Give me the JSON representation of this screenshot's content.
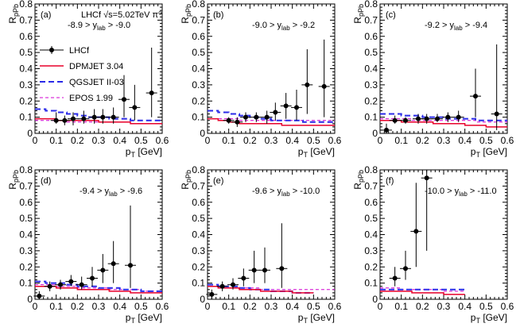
{
  "chart_data": {
    "type": "scatter",
    "title": "LHCf √s=5.02TeV π⁰",
    "title_parts": {
      "experiment": "LHCf",
      "energy": "√s=5.02TeV",
      "particle": "π⁰"
    },
    "xlabel": "p_T [GeV]",
    "ylabel": "R_pPb",
    "xlim": [
      0,
      0.6
    ],
    "ylim": [
      0,
      0.8
    ],
    "xticks": [
      "0",
      "0.1",
      "0.2",
      "0.3",
      "0.4",
      "0.5",
      "0.6"
    ],
    "yticks": [
      "0",
      "0.1",
      "0.2",
      "0.3",
      "0.4",
      "0.5",
      "0.6",
      "0.7",
      "0.8"
    ],
    "colors": {
      "lhcf": "#000000",
      "dpmjet": "#e8002a",
      "qgsjet": "#2a2ae8",
      "epos": "#d000d0"
    },
    "legend": {
      "position": "upper-left",
      "entries": [
        {
          "key": "lhcf",
          "label": "LHCf"
        },
        {
          "key": "dpmjet",
          "label": "DPMJET 3.04"
        },
        {
          "key": "qgsjet",
          "label": "QGSJET II-03"
        },
        {
          "key": "epos",
          "label": "EPOS 1.99"
        }
      ]
    },
    "panels": [
      {
        "label": "(a)",
        "rap_lo": "-8.9",
        "rap_hi": "-9.0",
        "lhcf": [
          {
            "x": 0.1,
            "y": 0.08,
            "ylo": 0.06,
            "yhi": 0.13
          },
          {
            "x": 0.14,
            "y": 0.08,
            "ylo": 0.05,
            "yhi": 0.11
          },
          {
            "x": 0.18,
            "y": 0.09,
            "ylo": 0.05,
            "yhi": 0.13
          },
          {
            "x": 0.23,
            "y": 0.09,
            "ylo": 0.06,
            "yhi": 0.14
          },
          {
            "x": 0.28,
            "y": 0.1,
            "ylo": 0.06,
            "yhi": 0.15
          },
          {
            "x": 0.32,
            "y": 0.1,
            "ylo": 0.06,
            "yhi": 0.15
          },
          {
            "x": 0.37,
            "y": 0.1,
            "ylo": 0.06,
            "yhi": 0.16
          },
          {
            "x": 0.42,
            "y": 0.21,
            "ylo": 0.1,
            "yhi": 0.36
          },
          {
            "x": 0.47,
            "y": 0.16,
            "ylo": 0.08,
            "yhi": 0.3
          },
          {
            "x": 0.55,
            "y": 0.25,
            "ylo": 0.1,
            "yhi": 0.53
          }
        ],
        "dpmjet": [
          0.09,
          0.09,
          0.08,
          0.08,
          0.08,
          0.08,
          0.07,
          0.07,
          0.07,
          0.06,
          0.06,
          0.06
        ],
        "qgsjet": [
          0.15,
          0.14,
          0.13,
          0.12,
          0.11,
          0.1,
          0.1,
          0.09,
          0.09,
          0.08,
          0.08,
          0.08
        ],
        "epos": [
          0.08,
          0.08,
          0.08,
          0.07,
          0.07,
          0.07,
          0.07,
          0.07,
          0.07,
          0.06,
          0.06,
          0.06
        ]
      },
      {
        "label": "(b)",
        "rap_lo": "-9.0",
        "rap_hi": "-9.2",
        "lhcf": [
          {
            "x": 0.1,
            "y": 0.08,
            "ylo": 0.06,
            "yhi": 0.1
          },
          {
            "x": 0.14,
            "y": 0.07,
            "ylo": 0.04,
            "yhi": 0.1
          },
          {
            "x": 0.18,
            "y": 0.1,
            "ylo": 0.07,
            "yhi": 0.13
          },
          {
            "x": 0.23,
            "y": 0.1,
            "ylo": 0.07,
            "yhi": 0.13
          },
          {
            "x": 0.28,
            "y": 0.1,
            "ylo": 0.06,
            "yhi": 0.14
          },
          {
            "x": 0.32,
            "y": 0.13,
            "ylo": 0.08,
            "yhi": 0.19
          },
          {
            "x": 0.37,
            "y": 0.17,
            "ylo": 0.09,
            "yhi": 0.25
          },
          {
            "x": 0.42,
            "y": 0.16,
            "ylo": 0.08,
            "yhi": 0.27
          },
          {
            "x": 0.47,
            "y": 0.3,
            "ylo": 0.12,
            "yhi": 0.52
          },
          {
            "x": 0.55,
            "y": 0.29,
            "ylo": 0.1,
            "yhi": 0.58
          }
        ],
        "dpmjet": [
          0.09,
          0.08,
          0.07,
          0.06,
          0.06,
          0.06,
          0.06,
          0.05,
          0.05,
          0.05,
          0.05,
          0.05
        ],
        "qgsjet": [
          0.14,
          0.13,
          0.12,
          0.11,
          0.1,
          0.09,
          0.08,
          0.08,
          0.08,
          0.07,
          0.07,
          0.07
        ],
        "epos": [
          0.09,
          0.09,
          0.09,
          0.08,
          0.08,
          0.08,
          0.08,
          0.08,
          0.08,
          0.08,
          0.08,
          0.08
        ]
      },
      {
        "label": "(c)",
        "rap_lo": "-9.2",
        "rap_hi": "-9.4",
        "lhcf": [
          {
            "x": 0.03,
            "y": 0.02,
            "ylo": 0.0,
            "yhi": 0.06
          },
          {
            "x": 0.07,
            "y": 0.08,
            "ylo": 0.06,
            "yhi": 0.11
          },
          {
            "x": 0.12,
            "y": 0.08,
            "ylo": 0.06,
            "yhi": 0.1
          },
          {
            "x": 0.18,
            "y": 0.09,
            "ylo": 0.06,
            "yhi": 0.12
          },
          {
            "x": 0.22,
            "y": 0.09,
            "ylo": 0.06,
            "yhi": 0.12
          },
          {
            "x": 0.27,
            "y": 0.09,
            "ylo": 0.07,
            "yhi": 0.12
          },
          {
            "x": 0.32,
            "y": 0.1,
            "ylo": 0.07,
            "yhi": 0.13
          },
          {
            "x": 0.37,
            "y": 0.1,
            "ylo": 0.07,
            "yhi": 0.14
          },
          {
            "x": 0.45,
            "y": 0.23,
            "ylo": 0.1,
            "yhi": 0.4
          },
          {
            "x": 0.55,
            "y": 0.12,
            "ylo": 0.02,
            "yhi": 0.55
          }
        ],
        "dpmjet": [
          0.08,
          0.08,
          0.07,
          0.07,
          0.07,
          0.06,
          0.06,
          0.06,
          0.05,
          0.05,
          0.04,
          0.04
        ],
        "qgsjet": [
          0.12,
          0.12,
          0.11,
          0.11,
          0.1,
          0.1,
          0.09,
          0.09,
          0.09,
          0.08,
          0.08,
          0.08
        ],
        "epos": [
          0.09,
          0.09,
          0.09,
          0.08,
          0.08,
          0.08,
          0.08,
          0.08,
          0.08,
          0.07,
          0.07,
          0.07
        ]
      },
      {
        "label": "(d)",
        "rap_lo": "-9.4",
        "rap_hi": "-9.6",
        "lhcf": [
          {
            "x": 0.02,
            "y": 0.02,
            "ylo": 0.0,
            "yhi": 0.05
          },
          {
            "x": 0.07,
            "y": 0.08,
            "ylo": 0.05,
            "yhi": 0.11
          },
          {
            "x": 0.12,
            "y": 0.09,
            "ylo": 0.06,
            "yhi": 0.12
          },
          {
            "x": 0.17,
            "y": 0.11,
            "ylo": 0.08,
            "yhi": 0.15
          },
          {
            "x": 0.22,
            "y": 0.09,
            "ylo": 0.06,
            "yhi": 0.14
          },
          {
            "x": 0.27,
            "y": 0.13,
            "ylo": 0.08,
            "yhi": 0.2
          },
          {
            "x": 0.32,
            "y": 0.18,
            "ylo": 0.1,
            "yhi": 0.28
          },
          {
            "x": 0.37,
            "y": 0.22,
            "ylo": 0.1,
            "yhi": 0.36
          },
          {
            "x": 0.45,
            "y": 0.21,
            "ylo": 0.07,
            "yhi": 0.58
          }
        ],
        "dpmjet": [
          0.08,
          0.08,
          0.07,
          0.07,
          0.06,
          0.06,
          0.06,
          0.05,
          0.05,
          0.04,
          0.04,
          0.04
        ],
        "qgsjet": [
          0.11,
          0.1,
          0.1,
          0.09,
          0.08,
          0.08,
          0.07,
          0.07,
          0.06,
          0.06,
          0.05,
          0.05
        ],
        "epos": [
          0.09,
          0.09,
          0.08,
          0.08,
          0.07,
          0.07,
          0.07,
          0.06,
          0.06,
          0.06,
          0.05,
          0.05
        ]
      },
      {
        "label": "(e)",
        "rap_lo": "-9.6",
        "rap_hi": "-10.0",
        "lhcf": [
          {
            "x": 0.02,
            "y": 0.03,
            "ylo": 0.0,
            "yhi": 0.06
          },
          {
            "x": 0.07,
            "y": 0.08,
            "ylo": 0.05,
            "yhi": 0.11
          },
          {
            "x": 0.12,
            "y": 0.09,
            "ylo": 0.06,
            "yhi": 0.13
          },
          {
            "x": 0.17,
            "y": 0.13,
            "ylo": 0.08,
            "yhi": 0.19
          },
          {
            "x": 0.22,
            "y": 0.18,
            "ylo": 0.1,
            "yhi": 0.3
          },
          {
            "x": 0.27,
            "y": 0.18,
            "ylo": 0.1,
            "yhi": 0.32
          },
          {
            "x": 0.35,
            "y": 0.19,
            "ylo": 0.07,
            "yhi": 0.47
          }
        ],
        "dpmjet": [
          0.08,
          0.07,
          0.07,
          0.06,
          0.06,
          0.05,
          0.05,
          0.05,
          0.04,
          0.04,
          null,
          null
        ],
        "qgsjet": [
          0.09,
          0.08,
          0.08,
          0.07,
          0.06,
          0.06,
          0.05,
          0.05,
          0.04,
          0.04,
          null,
          null
        ],
        "epos": [
          0.08,
          0.08,
          0.07,
          0.07,
          0.07,
          0.06,
          0.06,
          0.06,
          0.06,
          0.06,
          0.06,
          0.06
        ]
      },
      {
        "label": "(f)",
        "rap_lo": "-10.0",
        "rap_hi": "-11.0",
        "lhcf": [
          {
            "x": 0.07,
            "y": 0.13,
            "ylo": 0.08,
            "yhi": 0.2
          },
          {
            "x": 0.12,
            "y": 0.19,
            "ylo": 0.12,
            "yhi": 0.3
          },
          {
            "x": 0.17,
            "y": 0.42,
            "ylo": 0.2,
            "yhi": 0.72
          },
          {
            "x": 0.22,
            "y": 0.75,
            "ylo": 0.3,
            "yhi": 0.8
          }
        ],
        "dpmjet": [
          0.05,
          0.05,
          0.05,
          0.04,
          0.04,
          0.04,
          0.03,
          0.03,
          null,
          null,
          null,
          null
        ],
        "qgsjet": [
          0.06,
          0.06,
          0.06,
          0.06,
          0.06,
          0.06,
          0.06,
          0.06,
          null,
          null,
          null,
          null
        ],
        "epos": [
          0.07,
          0.07,
          0.06,
          0.06,
          0.06,
          0.06,
          0.05,
          0.05,
          null,
          null,
          null,
          null
        ]
      }
    ]
  }
}
